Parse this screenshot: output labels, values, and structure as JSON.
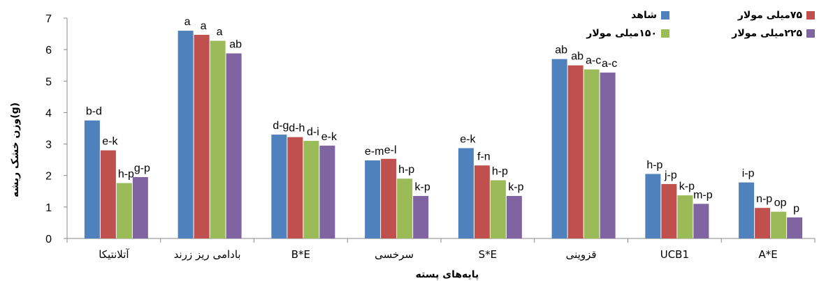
{
  "chart_data": {
    "type": "bar",
    "ylabel": "وزن خشک ریشه(g)",
    "xlabel": "پایه‌های پسته",
    "ylim": [
      0,
      7
    ],
    "yticks": [
      0,
      1,
      2,
      3,
      4,
      5,
      6,
      7
    ],
    "legend_position": "top-right",
    "categories": [
      "آتلانتیکا",
      "بادامی ریز زرند",
      "B*E",
      "سرخسی",
      "S*E",
      "قزوینی",
      "UCB1",
      "A*E"
    ],
    "series": [
      {
        "name": "شاهد",
        "color": "#4F81BD",
        "values": [
          3.75,
          6.6,
          3.3,
          2.48,
          2.87,
          5.7,
          2.05,
          1.78
        ],
        "labels": [
          "b-d",
          "a",
          "d-g",
          "e-m",
          "e-k",
          "ab",
          "h-p",
          "i-p"
        ]
      },
      {
        "name": "۷۵میلی مولار",
        "color": "#C0504D",
        "values": [
          2.8,
          6.47,
          3.22,
          2.53,
          2.32,
          5.5,
          1.73,
          0.97
        ],
        "labels": [
          "e-k",
          "a",
          "d-h",
          "e-l",
          "f-n",
          "ab",
          "j-p",
          "n-p"
        ]
      },
      {
        "name": "۱۵۰میلی مولار",
        "color": "#9BBB59",
        "values": [
          1.76,
          6.28,
          3.1,
          1.9,
          1.85,
          5.37,
          1.37,
          0.85
        ],
        "labels": [
          "h-p",
          "a",
          "d-i",
          "h-p",
          "h-p",
          "a-c",
          "k-p",
          "op"
        ]
      },
      {
        "name": "۲۲۵میلی مولار",
        "color": "#8064A2",
        "values": [
          1.95,
          5.88,
          2.95,
          1.35,
          1.35,
          5.27,
          1.1,
          0.67
        ],
        "labels": [
          "g-p",
          "ab",
          "e-k",
          "k-p",
          "k-p",
          "a-c",
          "m-p",
          "p"
        ]
      }
    ]
  }
}
